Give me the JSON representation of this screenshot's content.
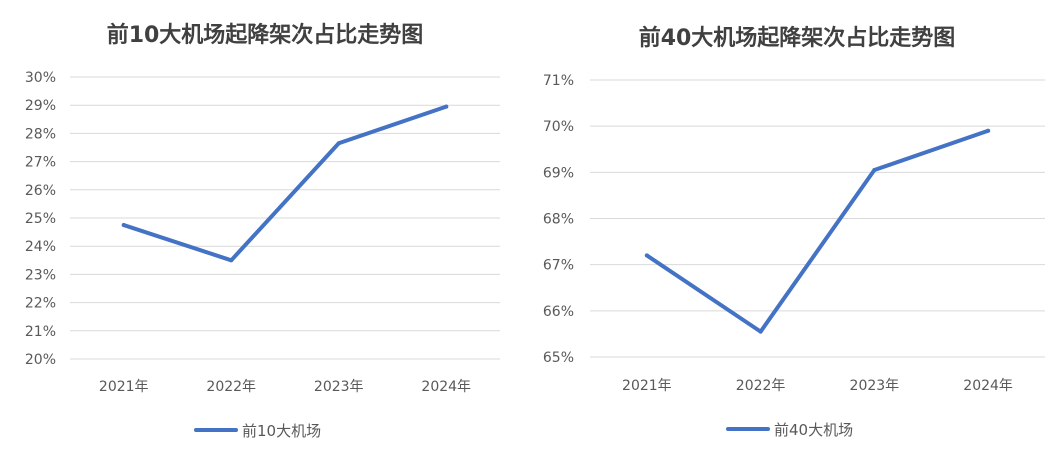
{
  "chart_data": [
    {
      "type": "line",
      "title": "前10大机场起降架次占比走势图",
      "categories": [
        "2021年",
        "2022年",
        "2023年",
        "2024年"
      ],
      "series": [
        {
          "name": "前10大机场",
          "values": [
            24.75,
            23.5,
            27.65,
            28.95
          ],
          "color": "#4472C4"
        }
      ],
      "ylim": [
        20,
        30
      ],
      "yticks": [
        "20%",
        "21%",
        "22%",
        "23%",
        "24%",
        "25%",
        "26%",
        "27%",
        "28%",
        "29%",
        "30%"
      ],
      "ytick_values": [
        20,
        21,
        22,
        23,
        24,
        25,
        26,
        27,
        28,
        29,
        30
      ],
      "grid": true,
      "legend_position": "bottom"
    },
    {
      "type": "line",
      "title": "前40大机场起降架次占比走势图",
      "categories": [
        "2021年",
        "2022年",
        "2023年",
        "2024年"
      ],
      "series": [
        {
          "name": "前40大机场",
          "values": [
            67.2,
            65.55,
            69.05,
            69.9
          ],
          "color": "#4472C4"
        }
      ],
      "ylim": [
        65,
        71
      ],
      "yticks": [
        "65%",
        "66%",
        "67%",
        "68%",
        "69%",
        "70%",
        "71%"
      ],
      "ytick_values": [
        65,
        66,
        67,
        68,
        69,
        70,
        71
      ],
      "grid": true,
      "legend_position": "bottom"
    }
  ]
}
